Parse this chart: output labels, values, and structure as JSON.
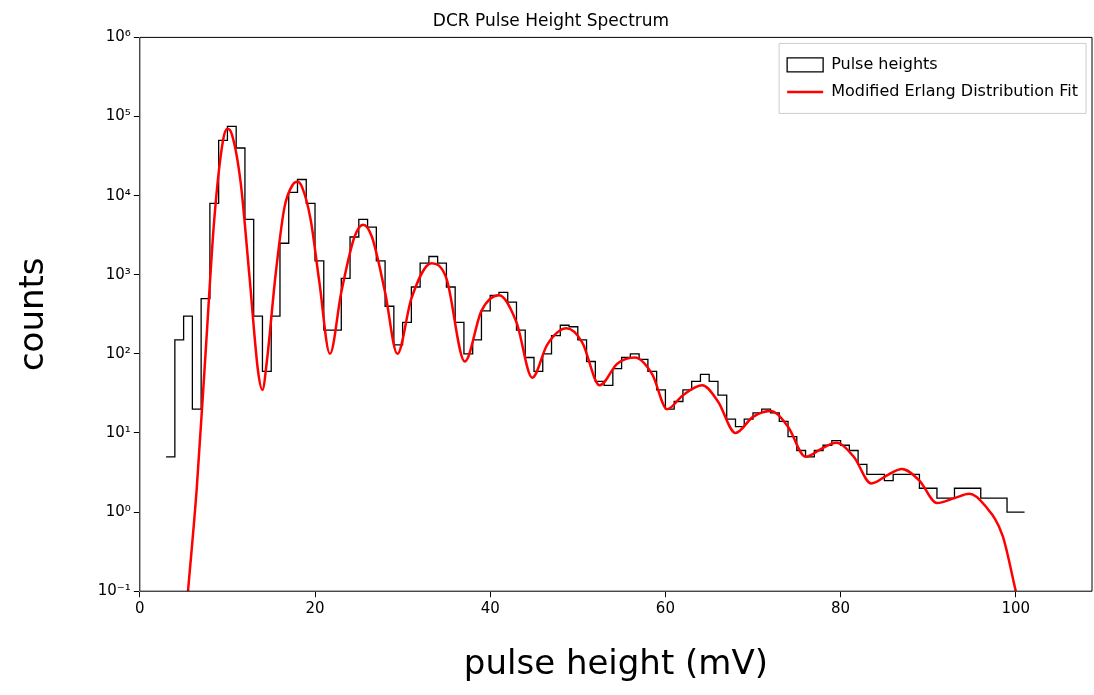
{
  "chart_data": {
    "type": "histogram",
    "title": "DCR Pulse Height Spectrum",
    "xlabel": "pulse height (mV)",
    "ylabel": "counts",
    "log": "y",
    "grid": false,
    "legend": "top right",
    "xlim": [
      0,
      108.7
    ],
    "xticks": [
      0,
      20,
      40,
      60,
      80,
      100
    ],
    "ylim": [
      0.1,
      1000000
    ],
    "yticks": [
      {
        "value": 0.1,
        "label": "10⁻¹"
      },
      {
        "value": 1,
        "label": "10⁰"
      },
      {
        "value": 10,
        "label": "10¹"
      },
      {
        "value": 100,
        "label": "10²"
      },
      {
        "value": 1000,
        "label": "10³"
      },
      {
        "value": 10000,
        "label": "10⁴"
      },
      {
        "value": 100000,
        "label": "10⁵"
      },
      {
        "value": 1000000,
        "label": "10⁶"
      }
    ],
    "series": [
      {
        "name": "Pulse heights",
        "color": "#000000",
        "bins": [
          3,
          4,
          5,
          6,
          7,
          8,
          9,
          10,
          11,
          12,
          13,
          14,
          15,
          16,
          17,
          18,
          19,
          20,
          21,
          22,
          23,
          24,
          25,
          26,
          27,
          28,
          29,
          30,
          31,
          32,
          33,
          34,
          35,
          36,
          37,
          38,
          39,
          40,
          41,
          42,
          43,
          44,
          45,
          46,
          47,
          48,
          49,
          50,
          51,
          52,
          53,
          54,
          55,
          56,
          57,
          58,
          59,
          60,
          61,
          62,
          63,
          64,
          65,
          66,
          67,
          68,
          69,
          70,
          71,
          72,
          73,
          74,
          75,
          76,
          77,
          78,
          79,
          80,
          81,
          82,
          83,
          84,
          85,
          86,
          87,
          88,
          89,
          90,
          91,
          92,
          93,
          94,
          95,
          96,
          97,
          98,
          99,
          100,
          101
        ],
        "values": [
          5,
          150,
          300,
          20,
          500,
          8000,
          50000,
          75000,
          40000,
          5000,
          300,
          60,
          300,
          2500,
          11000,
          16000,
          8000,
          1500,
          200,
          200,
          900,
          3000,
          5000,
          4000,
          1500,
          400,
          130,
          250,
          700,
          1400,
          1700,
          1400,
          700,
          250,
          100,
          150,
          350,
          550,
          600,
          450,
          200,
          90,
          60,
          100,
          170,
          230,
          220,
          150,
          80,
          45,
          40,
          65,
          90,
          100,
          85,
          60,
          35,
          20,
          25,
          35,
          45,
          55,
          45,
          30,
          15,
          12,
          15,
          18,
          20,
          18,
          14,
          9,
          6,
          5,
          6,
          7,
          8,
          7,
          6,
          4,
          3,
          3,
          2.5,
          3,
          3,
          3,
          2,
          2,
          1.5,
          1.5,
          2,
          2,
          2,
          1.5,
          1.5,
          1.5,
          1,
          1
        ]
      },
      {
        "name": "Modified Erlang Distribution Fit",
        "type": "line",
        "color": "#ff0000",
        "x": [
          5.5,
          6.5,
          7.5,
          8.5,
          9.5,
          10,
          10.5,
          11.5,
          12.5,
          13.5,
          14,
          14.5,
          15.5,
          16.5,
          17.5,
          18,
          18.5,
          19.5,
          20.5,
          21.7,
          23,
          24.5,
          25.5,
          26.5,
          28,
          29.4,
          31,
          33.3,
          35,
          37.1,
          39,
          41,
          43,
          44.8,
          46.5,
          48.7,
          50.5,
          52.5,
          54.5,
          56.5,
          58.5,
          60.2,
          62,
          64.2,
          66,
          68,
          70,
          72,
          74,
          76,
          78,
          79.5,
          81.5,
          83.5,
          85.5,
          87,
          89,
          91,
          93,
          94.7,
          96.5,
          98.5,
          100
        ],
        "values": [
          0.1,
          2,
          100,
          5000,
          50000,
          70000,
          60000,
          15000,
          1000,
          60,
          35,
          80,
          1000,
          7000,
          14000,
          15000,
          13000,
          5000,
          800,
          100,
          600,
          3000,
          4300,
          3000,
          600,
          100,
          500,
          1400,
          900,
          80,
          350,
          550,
          250,
          50,
          130,
          210,
          140,
          40,
          75,
          90,
          55,
          20,
          30,
          40,
          25,
          10,
          16,
          19,
          12,
          5,
          6.5,
          7.5,
          5,
          2.3,
          3,
          3.5,
          2.5,
          1.3,
          1.5,
          1.7,
          1.2,
          0.5,
          0.1
        ]
      }
    ]
  }
}
